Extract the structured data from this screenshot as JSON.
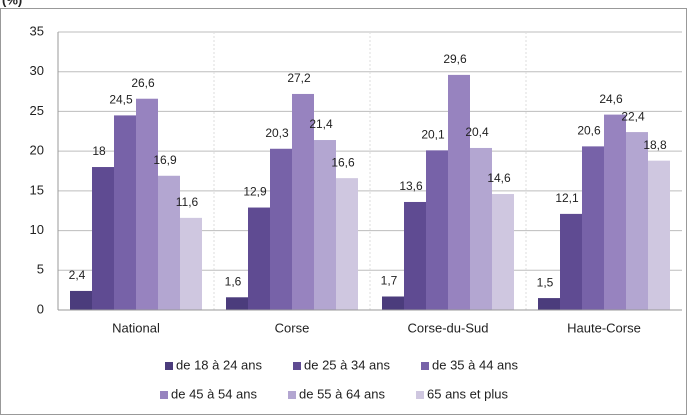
{
  "chart_data": {
    "type": "bar",
    "title": "(%)",
    "categories": [
      "National",
      "Corse",
      "Corse-du-Sud",
      "Haute-Corse"
    ],
    "series": [
      {
        "name": "de 18 à 24 ans",
        "color": "#4b3c7c",
        "values": [
          2.4,
          1.6,
          1.7,
          1.5
        ],
        "value_labels": [
          "2,4",
          "1,6",
          "1,7",
          "1,5"
        ]
      },
      {
        "name": "de 25 à 34 ans",
        "color": "#5f4b92",
        "values": [
          18,
          12.9,
          13.6,
          12.1
        ],
        "value_labels": [
          "18",
          "12,9",
          "13,6",
          "12,1"
        ]
      },
      {
        "name": "de 35 à 44 ans",
        "color": "#7762a8",
        "values": [
          24.5,
          20.3,
          20.1,
          20.6
        ],
        "value_labels": [
          "24,5",
          "20,3",
          "20,1",
          "20,6"
        ]
      },
      {
        "name": "de 45 à 54 ans",
        "color": "#9783bf",
        "values": [
          26.6,
          27.2,
          29.6,
          24.6
        ],
        "value_labels": [
          "26,6",
          "27,2",
          "29,6",
          "24,6"
        ]
      },
      {
        "name": "de 55 à 64 ans",
        "color": "#b3a6d1",
        "values": [
          16.9,
          21.4,
          20.4,
          22.4
        ],
        "value_labels": [
          "16,9",
          "21,4",
          "20,4",
          "22,4"
        ]
      },
      {
        "name": "65 ans et plus",
        "color": "#cfc7e0",
        "values": [
          11.6,
          16.6,
          14.6,
          18.8
        ],
        "value_labels": [
          "11,6",
          "16,6",
          "14,6",
          "18,8"
        ]
      }
    ],
    "ylim": [
      0,
      35
    ],
    "yticks": [
      0,
      5,
      10,
      15,
      20,
      25,
      30,
      35
    ],
    "grid": true,
    "legend": "bottom"
  }
}
